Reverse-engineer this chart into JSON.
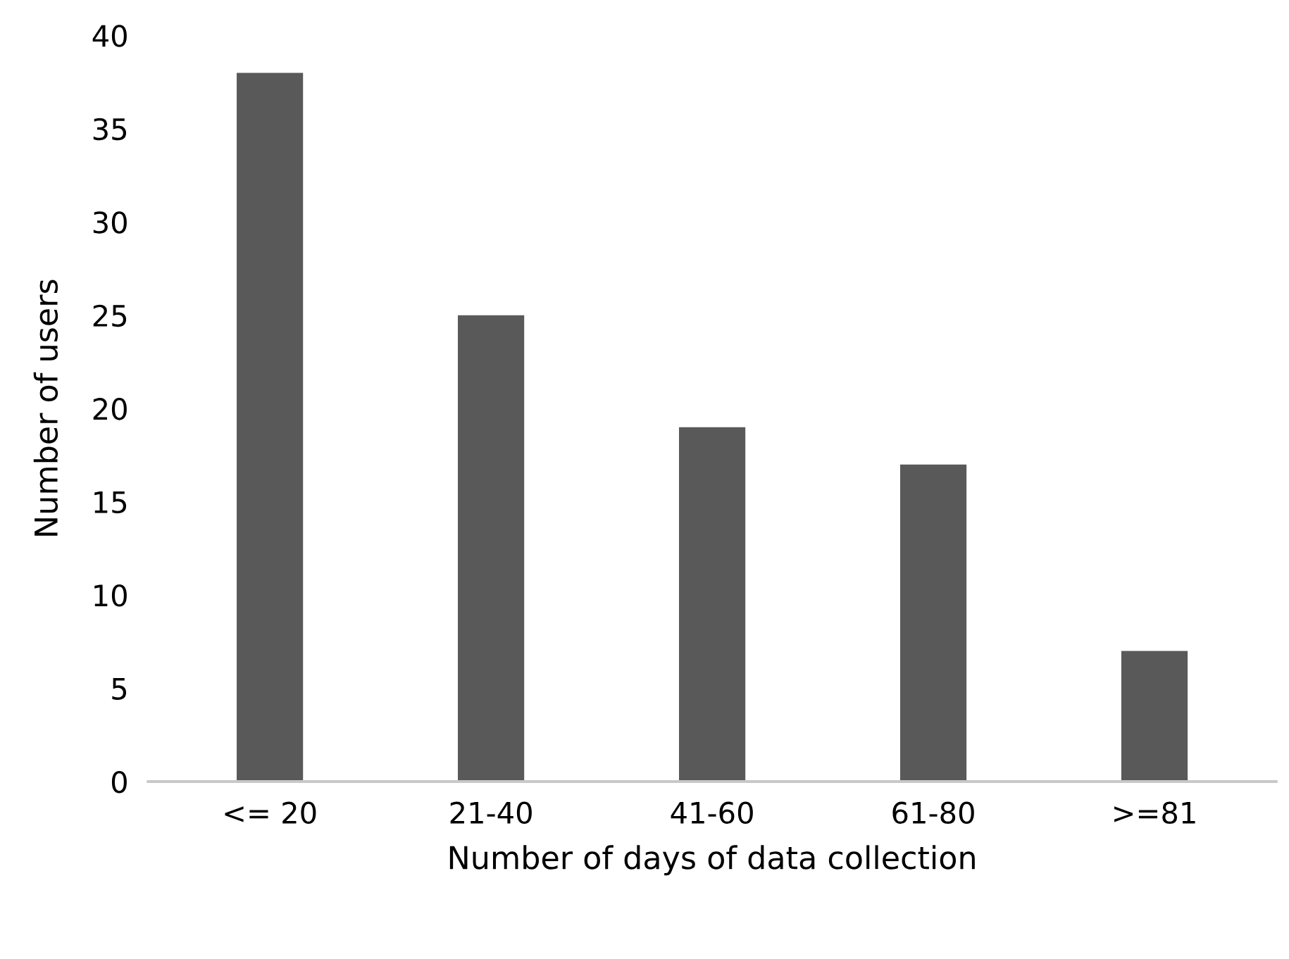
{
  "chart_data": {
    "type": "bar",
    "xlabel": "Number of days of data collection",
    "ylabel": "Number of users",
    "categories": [
      "<= 20",
      "21-40",
      "41-60",
      "61-80",
      ">=81"
    ],
    "values": [
      38,
      25,
      19,
      17,
      7
    ],
    "color": "#595959",
    "ylim": [
      0,
      40
    ],
    "yticks": [
      0,
      5,
      10,
      15,
      20,
      25,
      30,
      35,
      40
    ],
    "grid": false
  }
}
